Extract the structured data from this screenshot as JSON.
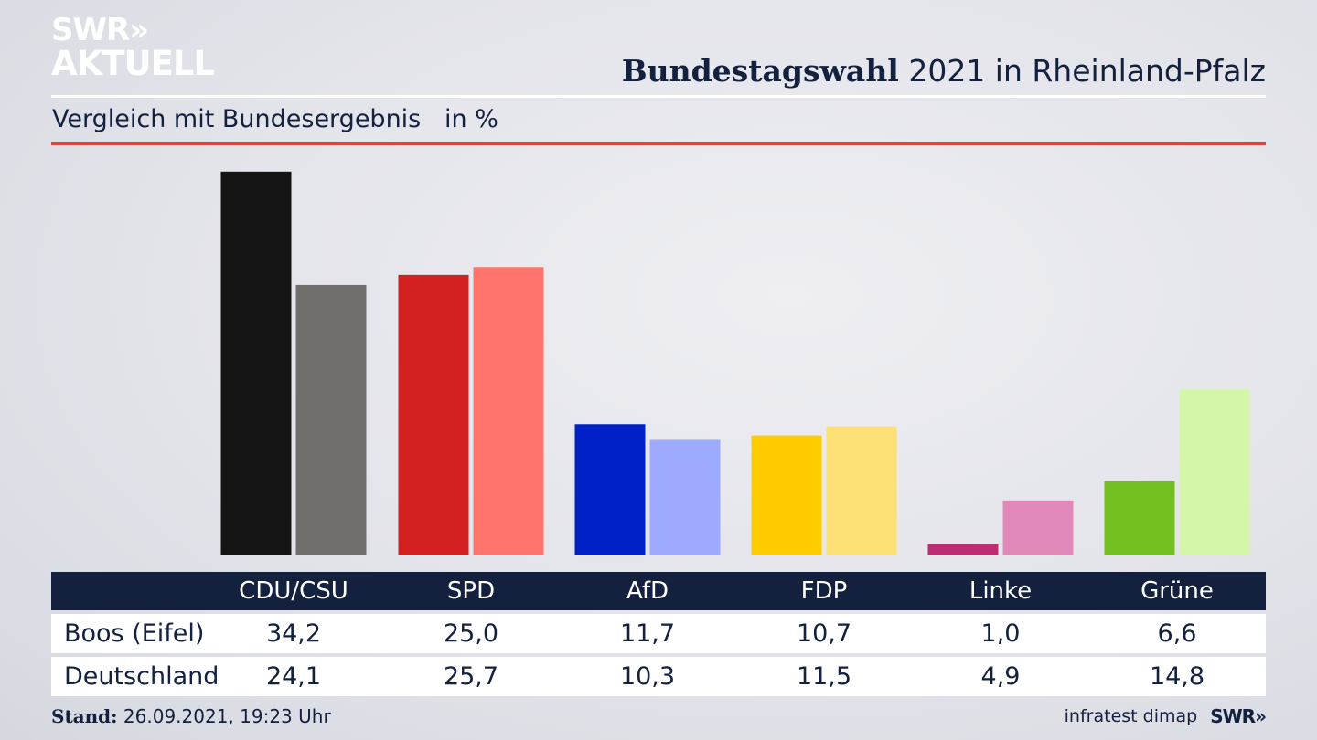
{
  "logo": {
    "line1": "SWR»",
    "line2": "AKTUELL"
  },
  "header": {
    "title_bold": "Bundestagswahl",
    "title_rest": " 2021 in Rheinland-Pfalz",
    "subtitle": "Vergleich mit Bundesergebnis   in %"
  },
  "colors": {
    "navy": "#13213f",
    "accent_red": "#d9473a",
    "parties": [
      {
        "primary": "#141414",
        "secondary": "#706e6b"
      },
      {
        "primary": "#d42020",
        "secondary": "#ff746d"
      },
      {
        "primary": "#0020c8",
        "secondary": "#9eaafd"
      },
      {
        "primary": "#ffcc00",
        "secondary": "#fde075"
      },
      {
        "primary": "#be2d73",
        "secondary": "#e18ab9"
      },
      {
        "primary": "#72bf1f",
        "secondary": "#d3f6a8"
      }
    ]
  },
  "chart_data": {
    "type": "bar",
    "categories": [
      "CDU/CSU",
      "SPD",
      "AfD",
      "FDP",
      "Linke",
      "Grüne"
    ],
    "series": [
      {
        "name": "Boos (Eifel)",
        "values": [
          "34,2",
          "25,0",
          "11,7",
          "10,7",
          "1,0",
          "6,6"
        ]
      },
      {
        "name": "Deutschland",
        "values": [
          "24,1",
          "25,7",
          "10,3",
          "11,5",
          "4,9",
          "14,8"
        ]
      }
    ],
    "ylim": [
      0,
      35
    ],
    "grid": false,
    "legend": "table-below"
  },
  "footer": {
    "stand_label": "Stand:",
    "stand_value": " 26.09.2021, 19:23 Uhr",
    "source": "infratest dimap",
    "brand": "SWR»"
  }
}
